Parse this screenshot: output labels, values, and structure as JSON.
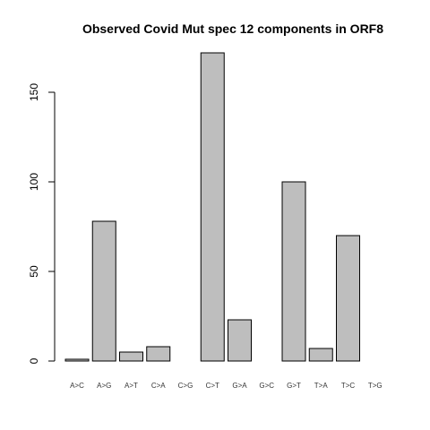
{
  "chart_data": {
    "type": "bar",
    "title": "Observed Covid Mut spec 12 components in ORF8",
    "xlabel": "",
    "ylabel": "",
    "categories": [
      "A>C",
      "A>G",
      "A>T",
      "C>A",
      "C>G",
      "C>T",
      "G>A",
      "G>C",
      "G>T",
      "T>A",
      "T>C",
      "T>G"
    ],
    "values": [
      1,
      78,
      5,
      8,
      0,
      172,
      23,
      0,
      100,
      7,
      70,
      0
    ],
    "yticks": [
      0,
      50,
      100,
      150
    ],
    "ylim": [
      0,
      172
    ],
    "grid": false,
    "legend": "none",
    "colors": {
      "bar_fill": "#bebebe",
      "bar_stroke": "#000000",
      "axis": "#000000",
      "text": "#000000"
    }
  }
}
